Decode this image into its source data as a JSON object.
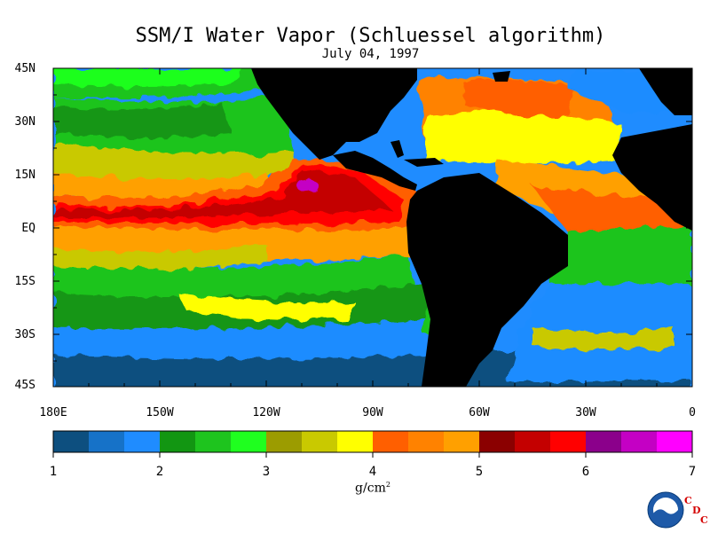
{
  "title": "SSM/I Water Vapor (Schluessel algorithm)",
  "date": "July 04, 1997",
  "lat_labels": [
    "45N",
    "30N",
    "15N",
    "EQ",
    "15S",
    "30S",
    "45S"
  ],
  "lon_labels": [
    "180E",
    "150W",
    "120W",
    "90W",
    "60W",
    "30W",
    "0"
  ],
  "colorbar": {
    "tick_labels": [
      "1",
      "2",
      "3",
      "4",
      "5",
      "6",
      "7"
    ],
    "units": "g/cm",
    "units_sup": "2",
    "colors": [
      "#0d4f7f",
      "#1672c8",
      "#1f8cff",
      "#129612",
      "#1ec41e",
      "#1fff1f",
      "#9c9c00",
      "#c9c900",
      "#ffff00",
      "#ff5f00",
      "#ff8200",
      "#ffa000",
      "#8b0000",
      "#c40000",
      "#ff0000",
      "#8b008b",
      "#c400c4",
      "#ff00ff"
    ]
  },
  "logo": {
    "text": "NOAA",
    "cdc": [
      "C",
      "D",
      "C"
    ]
  },
  "colors": {
    "land": "#000000",
    "ocean_low": "#1672c8"
  }
}
